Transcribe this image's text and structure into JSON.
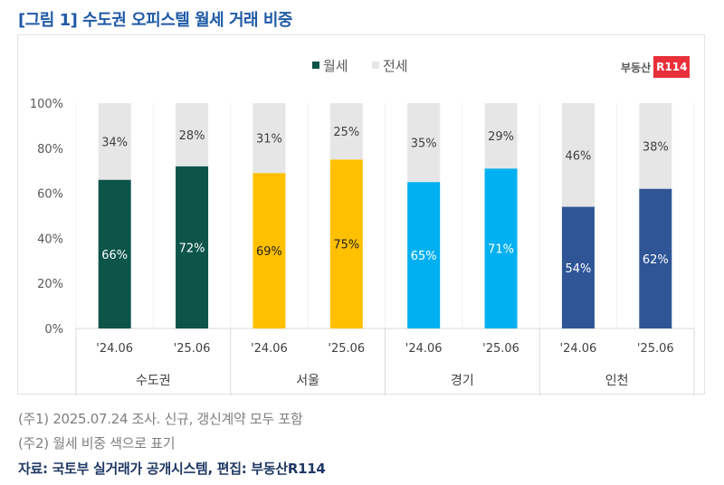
{
  "title": "[그림 1] 수도권 오피스텔 월세 거래 비중",
  "logo": {
    "text": "부동산",
    "badge": "R114"
  },
  "notes": [
    "(주1) 2025.07.24 조사. 신규, 갱신계약 모두 포함",
    "(주2) 월세 비중 색으로 표기"
  ],
  "source": "자료: 국토부 실거래가 공개시스템, 편집: 부동산R114",
  "chart_data": {
    "type": "bar",
    "stacked": true,
    "legend": {
      "position": "top",
      "entries": [
        "월세",
        "전세"
      ]
    },
    "ylim": [
      0,
      100
    ],
    "yticks": [
      "0%",
      "20%",
      "40%",
      "60%",
      "80%",
      "100%"
    ],
    "groups": [
      "수도권",
      "서울",
      "경기",
      "인천"
    ],
    "categories": [
      "'24.06",
      "'25.06",
      "'24.06",
      "'25.06",
      "'24.06",
      "'25.06",
      "'24.06",
      "'25.06"
    ],
    "series": [
      {
        "name": "월세",
        "values": [
          66,
          72,
          69,
          75,
          65,
          71,
          54,
          62
        ],
        "colors": [
          "#0d5449",
          "#0d5449",
          "#ffc000",
          "#ffc000",
          "#00b0f0",
          "#00b0f0",
          "#2f5597",
          "#2f5597"
        ]
      },
      {
        "name": "전세",
        "values": [
          34,
          28,
          31,
          25,
          35,
          29,
          46,
          38
        ],
        "color": "#e6e6e6"
      }
    ],
    "label_colors": [
      "#ffffff",
      "#ffffff",
      "#222222",
      "#222222",
      "#ffffff",
      "#ffffff",
      "#ffffff",
      "#ffffff"
    ]
  }
}
